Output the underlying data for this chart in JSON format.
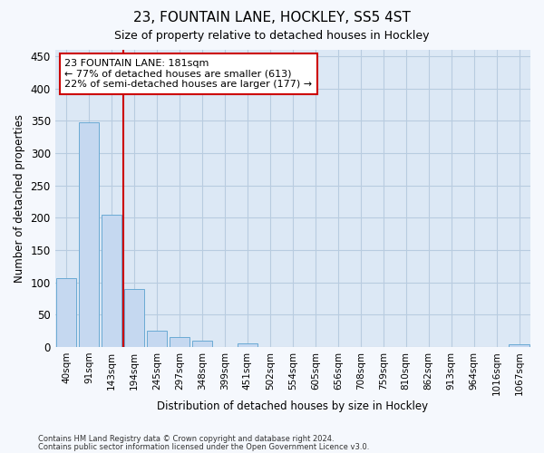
{
  "title1": "23, FOUNTAIN LANE, HOCKLEY, SS5 4ST",
  "title2": "Size of property relative to detached houses in Hockley",
  "xlabel": "Distribution of detached houses by size in Hockley",
  "ylabel": "Number of detached properties",
  "footer1": "Contains HM Land Registry data © Crown copyright and database right 2024.",
  "footer2": "Contains public sector information licensed under the Open Government Licence v3.0.",
  "annotation_line1": "23 FOUNTAIN LANE: 181sqm",
  "annotation_line2": "← 77% of detached houses are smaller (613)",
  "annotation_line3": "22% of semi-detached houses are larger (177) →",
  "bar_color": "#c5d8f0",
  "bar_edge_color": "#6aaad4",
  "vline_color": "#cc0000",
  "bg_color": "#dce8f5",
  "grid_color": "#b8cce0",
  "fig_bg_color": "#f5f8fd",
  "annotation_box_color": "#ffffff",
  "annotation_border_color": "#cc0000",
  "bins": [
    "40sqm",
    "91sqm",
    "143sqm",
    "194sqm",
    "245sqm",
    "297sqm",
    "348sqm",
    "399sqm",
    "451sqm",
    "502sqm",
    "554sqm",
    "605sqm",
    "656sqm",
    "708sqm",
    "759sqm",
    "810sqm",
    "862sqm",
    "913sqm",
    "964sqm",
    "1016sqm",
    "1067sqm"
  ],
  "values": [
    107,
    348,
    205,
    90,
    25,
    16,
    10,
    0,
    5,
    0,
    0,
    0,
    0,
    0,
    0,
    0,
    0,
    0,
    0,
    0,
    4
  ],
  "ylim": [
    0,
    460
  ],
  "yticks": [
    0,
    50,
    100,
    150,
    200,
    250,
    300,
    350,
    400,
    450
  ]
}
